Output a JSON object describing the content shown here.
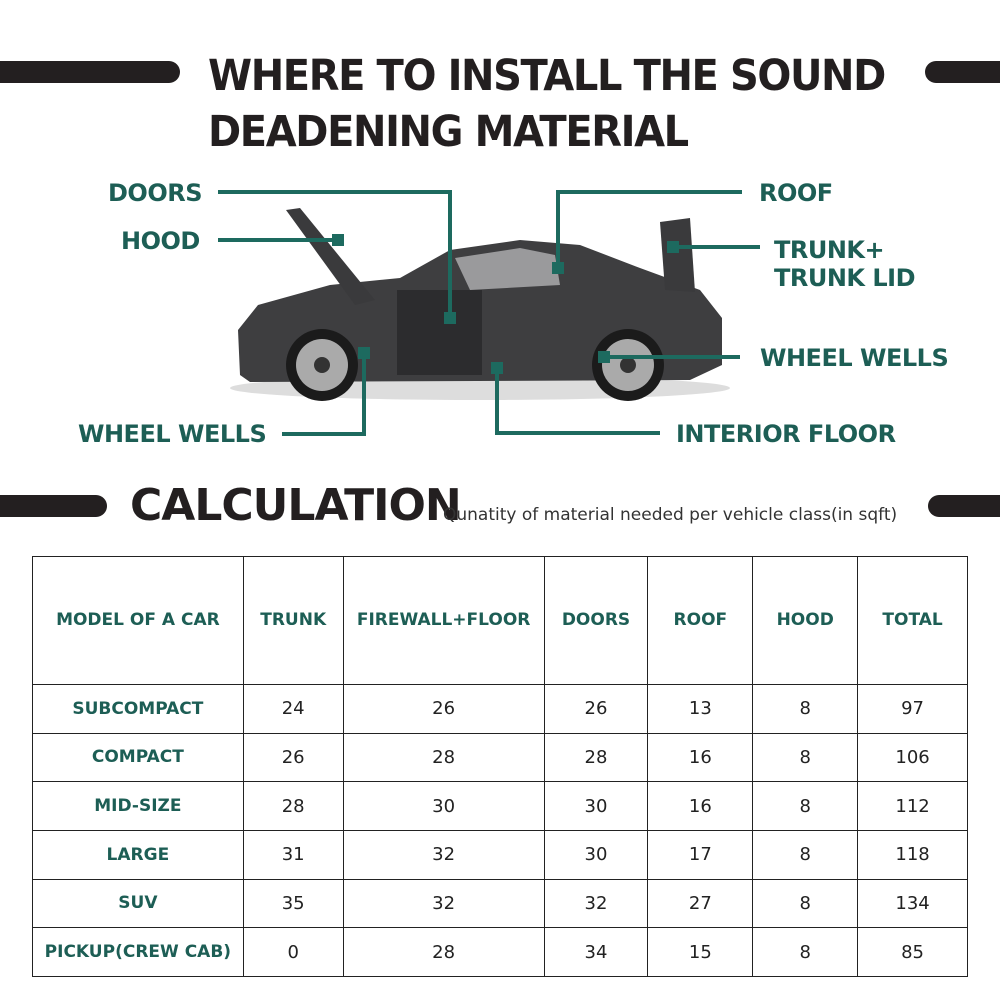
{
  "title": {
    "line1": "WHERE TO INSTALL THE SOUND",
    "line2": "DEADENING MATERIAL"
  },
  "labels": {
    "doors": "DOORS",
    "hood": "HOOD",
    "roof": "ROOF",
    "trunk1": "TRUNK+",
    "trunk2": "TRUNK LID",
    "wheel_wells_right": "WHEEL WELLS",
    "wheel_wells_left": "WHEEL WELLS",
    "interior_floor": "INTERIOR FLOOR"
  },
  "calculation": {
    "heading": "CALCULATION",
    "subtitle": "Qunatity of material needed per vehicle class(in sqft)"
  },
  "colors": {
    "accent": "#1d5e55",
    "dark": "#231f20"
  },
  "table": {
    "headers": [
      "MODEL OF A CAR",
      "TRUNK",
      "FIREWALL+FLOOR",
      "DOORS",
      "ROOF",
      "HOOD",
      "TOTAL"
    ],
    "rows": [
      [
        "SUBCOMPACT",
        "24",
        "26",
        "26",
        "13",
        "8",
        "97"
      ],
      [
        "COMPACT",
        "26",
        "28",
        "28",
        "16",
        "8",
        "106"
      ],
      [
        "MID-SIZE",
        "28",
        "30",
        "30",
        "16",
        "8",
        "112"
      ],
      [
        "LARGE",
        "31",
        "32",
        "30",
        "17",
        "8",
        "118"
      ],
      [
        "SUV",
        "35",
        "32",
        "32",
        "27",
        "8",
        "134"
      ],
      [
        "PICKUP(CREW CAB)",
        "0",
        "28",
        "34",
        "15",
        "8",
        "85"
      ]
    ]
  }
}
